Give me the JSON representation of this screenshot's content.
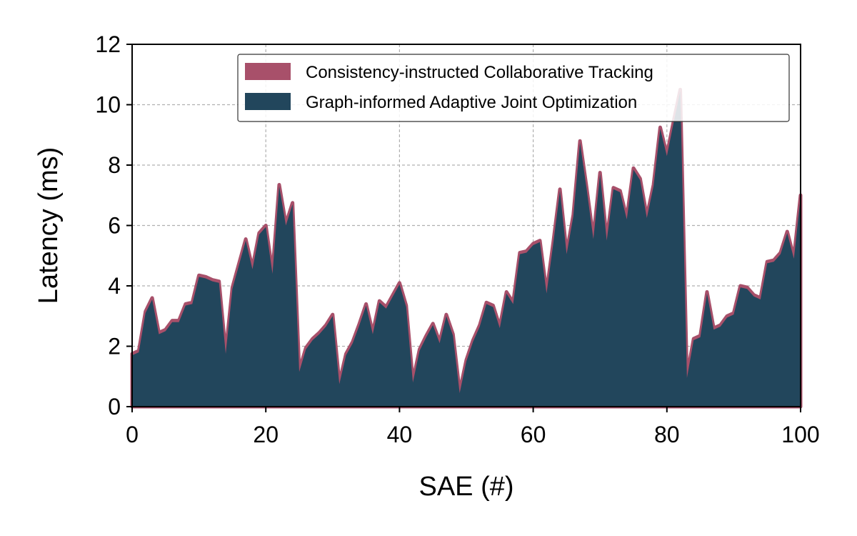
{
  "chart_data": {
    "type": "area",
    "xlabel": "SAE (#)",
    "ylabel": "Latency (ms)",
    "xlim": [
      0,
      100
    ],
    "ylim": [
      0,
      12
    ],
    "xticks": [
      0,
      20,
      40,
      60,
      80,
      100
    ],
    "yticks": [
      0,
      2,
      4,
      6,
      8,
      10,
      12
    ],
    "grid": true,
    "legend_position": "top-right",
    "x": [
      0,
      1,
      2,
      3,
      4,
      5,
      6,
      7,
      8,
      9,
      10,
      11,
      12,
      13,
      14,
      15,
      16,
      17,
      18,
      19,
      20,
      21,
      22,
      23,
      24,
      25,
      26,
      27,
      28,
      29,
      30,
      31,
      32,
      33,
      34,
      35,
      36,
      37,
      38,
      39,
      40,
      41,
      42,
      43,
      44,
      45,
      46,
      47,
      48,
      49,
      50,
      51,
      52,
      53,
      54,
      55,
      56,
      57,
      58,
      59,
      60,
      61,
      62,
      63,
      64,
      65,
      66,
      67,
      68,
      69,
      70,
      71,
      72,
      73,
      74,
      75,
      76,
      77,
      78,
      79,
      80,
      81,
      82,
      83,
      84,
      85,
      86,
      87,
      88,
      89,
      90,
      91,
      92,
      93,
      94,
      95,
      96,
      97,
      98,
      99,
      100
    ],
    "series": [
      {
        "name": "Consistency-instructed Collaborative Tracking",
        "color": "#a8506a",
        "values": [
          1.75,
          1.85,
          3.15,
          3.6,
          2.45,
          2.55,
          2.85,
          2.85,
          3.4,
          3.45,
          4.35,
          4.3,
          4.2,
          4.15,
          1.8,
          3.95,
          4.75,
          5.55,
          4.6,
          5.75,
          6.0,
          4.45,
          7.35,
          6.05,
          6.75,
          1.2,
          1.95,
          2.25,
          2.45,
          2.7,
          3.05,
          0.8,
          1.75,
          2.15,
          2.75,
          3.4,
          2.45,
          3.5,
          3.3,
          3.7,
          4.1,
          3.35,
          0.85,
          1.9,
          2.35,
          2.75,
          2.15,
          3.05,
          2.4,
          0.5,
          1.55,
          2.2,
          2.7,
          3.45,
          3.35,
          2.65,
          3.8,
          3.45,
          5.1,
          5.15,
          5.4,
          5.5,
          3.8,
          5.45,
          7.2,
          5.1,
          6.35,
          8.8,
          7.25,
          5.6,
          7.75,
          5.55,
          7.25,
          7.15,
          6.25,
          7.9,
          7.55,
          6.3,
          7.35,
          9.25,
          8.35,
          9.45,
          10.5,
          1.0,
          2.25,
          2.35,
          3.8,
          2.6,
          2.7,
          3.0,
          3.1,
          4.0,
          3.95,
          3.7,
          3.6,
          4.8,
          4.85,
          5.1,
          5.8,
          4.95,
          7.0
        ]
      },
      {
        "name": "Graph-informed Adaptive Joint Optimization",
        "color": "#22465c",
        "values": [
          1.7,
          1.8,
          3.1,
          3.55,
          2.4,
          2.5,
          2.8,
          2.8,
          3.35,
          3.4,
          4.3,
          4.25,
          4.15,
          4.1,
          1.75,
          3.9,
          4.7,
          5.5,
          4.55,
          5.7,
          5.95,
          4.4,
          7.3,
          6.0,
          6.7,
          1.15,
          1.9,
          2.2,
          2.4,
          2.65,
          3.0,
          0.75,
          1.7,
          2.1,
          2.7,
          3.35,
          2.4,
          3.45,
          3.25,
          3.65,
          4.05,
          3.3,
          0.8,
          1.85,
          2.3,
          2.7,
          2.1,
          3.0,
          2.35,
          0.45,
          1.5,
          2.15,
          2.65,
          3.4,
          3.3,
          2.6,
          3.75,
          3.4,
          5.05,
          5.1,
          5.35,
          5.45,
          3.75,
          5.4,
          7.15,
          5.05,
          6.3,
          8.75,
          7.2,
          5.55,
          7.7,
          5.5,
          7.2,
          7.1,
          6.2,
          7.85,
          7.5,
          6.25,
          7.3,
          9.2,
          8.3,
          9.4,
          10.45,
          0.95,
          2.2,
          2.3,
          3.75,
          2.55,
          2.65,
          2.95,
          3.05,
          3.95,
          3.9,
          3.65,
          3.55,
          4.75,
          4.8,
          5.05,
          5.75,
          4.9,
          6.95
        ]
      }
    ]
  }
}
